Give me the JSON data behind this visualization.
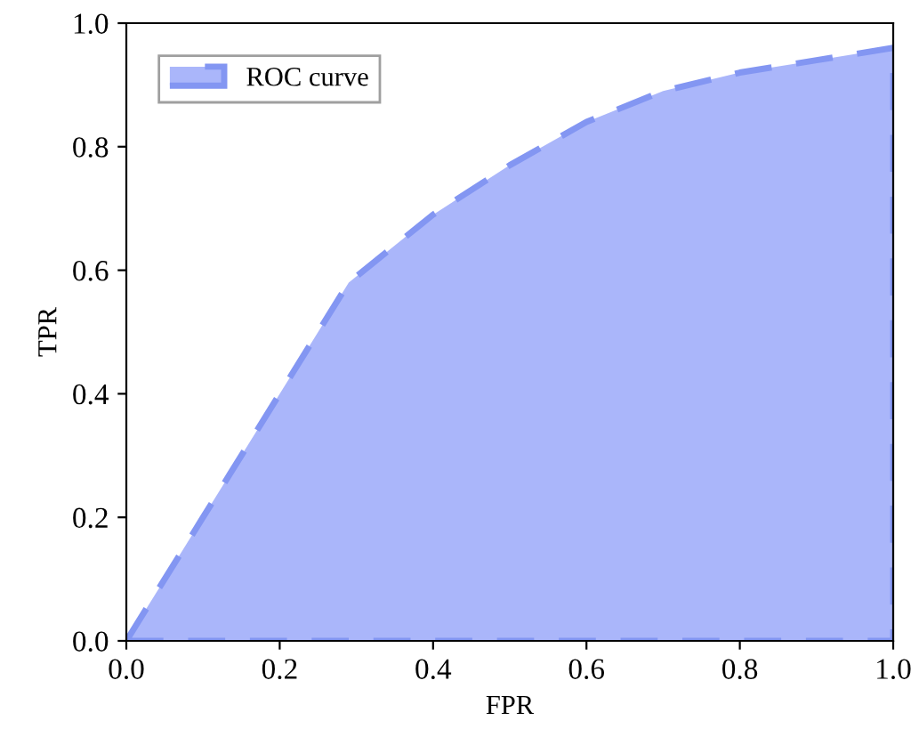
{
  "chart_data": {
    "type": "area",
    "xlabel": "FPR",
    "ylabel": "TPR",
    "x": [
      0,
      0.1,
      0.2,
      0.29,
      0.4,
      0.5,
      0.6,
      0.7,
      0.8,
      0.9,
      1.0
    ],
    "series": [
      {
        "name": "ROC curve",
        "color": "#aab6fa",
        "values": [
          0,
          0.2,
          0.4,
          0.58,
          0.69,
          0.77,
          0.84,
          0.89,
          0.92,
          0.94,
          0.96
        ],
        "line_style": "dashed"
      }
    ],
    "xlim": [
      0,
      1
    ],
    "ylim": [
      0,
      1
    ],
    "xticks": [
      {
        "value": 0,
        "label": "0.0"
      },
      0.2,
      0.4,
      0.6,
      0.8,
      {
        "value": 1,
        "label": "1.0"
      }
    ],
    "yticks": [
      {
        "value": 0,
        "label": "0.0"
      },
      0.2,
      0.4,
      0.6,
      0.8,
      {
        "value": 1,
        "label": "1.0"
      }
    ],
    "legend": "top left",
    "grid": false
  }
}
